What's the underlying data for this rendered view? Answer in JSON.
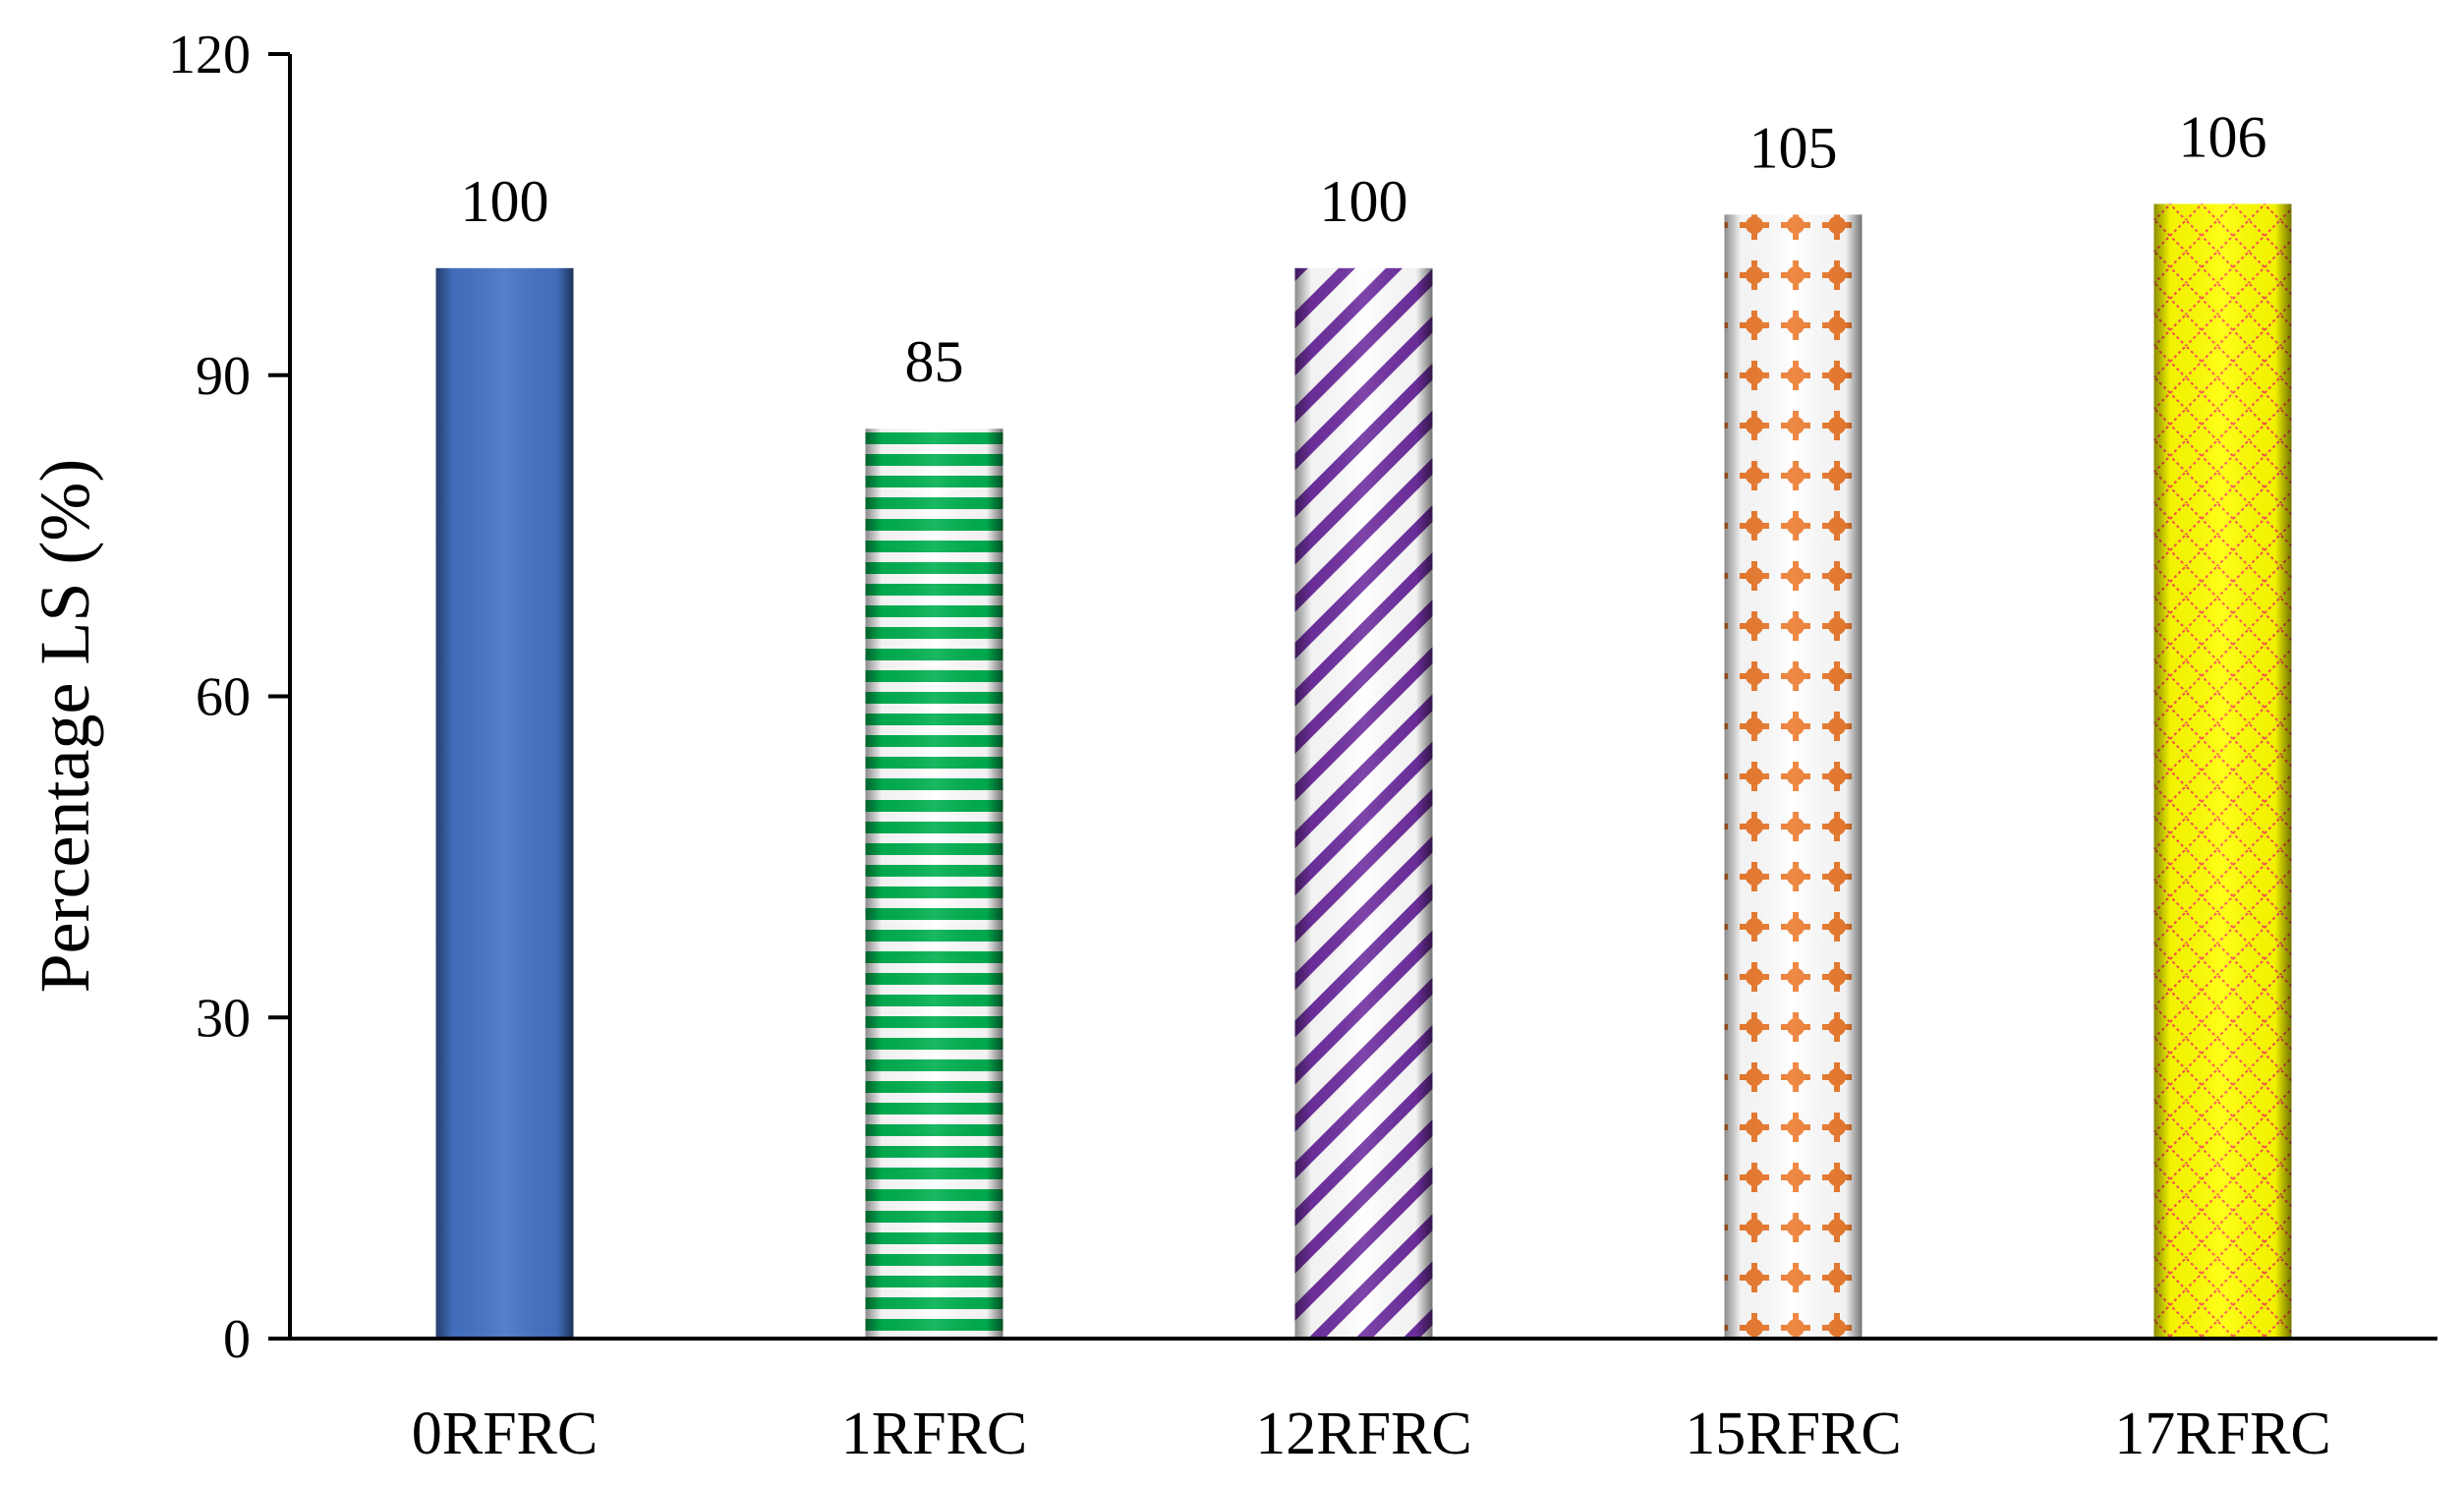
{
  "chart_data": {
    "type": "bar",
    "title": "",
    "xlabel": "",
    "ylabel": "Percentage LS (%)",
    "ylim": [
      0,
      120
    ],
    "yticks": [
      0,
      30,
      60,
      90,
      120
    ],
    "grid": false,
    "legend": "none",
    "categories": [
      "0RFRC",
      "1RFRC",
      "12RFRC",
      "15RFRC",
      "17RFRC"
    ],
    "values": [
      100,
      85,
      100,
      105,
      106
    ],
    "data_labels": [
      "100",
      "85",
      "100",
      "105",
      "106"
    ],
    "bar_styles": [
      {
        "pattern": "solid",
        "color": "#4472C4"
      },
      {
        "pattern": "horizontal-stripes",
        "color": "#00B050"
      },
      {
        "pattern": "diagonal-stripes",
        "color": "#7030A0"
      },
      {
        "pattern": "plus-dots",
        "color": "#ED7D31"
      },
      {
        "pattern": "diamond-lattice",
        "color": "#FFFF00",
        "accent": "#FF5050"
      }
    ]
  }
}
